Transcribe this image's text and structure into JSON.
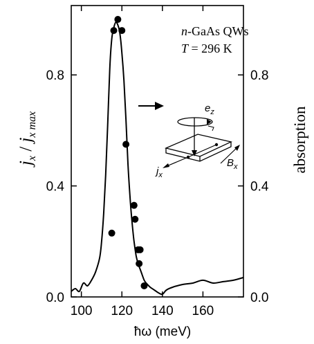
{
  "chart_data": {
    "type": "line",
    "title": "",
    "annotations": {
      "sample": "n-GaAs QWs",
      "sample_italic_part": "n",
      "sample_rest": "-GaAs QWs",
      "temperature": "T = 296 K",
      "temperature_italic_part": "T",
      "temperature_rest": " = 296 K",
      "inset_labels": {
        "ez": "e",
        "ez_sub": "z",
        "jx": "j",
        "jx_sub": "x",
        "bx": "B",
        "bx_sub": "x"
      }
    },
    "xlabel": "ħω (meV)",
    "ylabel_left": "j_x / j_x max",
    "ylabel_left_parts": {
      "j1": "j",
      "s1": "x",
      "slash": " / ",
      "j2": "j",
      "s2": "x max"
    },
    "ylabel_right": "absorption",
    "xlim": [
      95,
      180
    ],
    "ylim": [
      0,
      1.05
    ],
    "x_ticks": [
      100,
      120,
      140,
      160
    ],
    "x_tick_labels": [
      "100",
      "120",
      "140",
      "160"
    ],
    "y_ticks": [
      0.0,
      0.4,
      0.8
    ],
    "y_tick_labels_left": [
      "0.0",
      "0.4",
      "0.8"
    ],
    "y_tick_labels_right": [
      "0.0",
      "0.4",
      "0.8"
    ],
    "series": [
      {
        "kind": "line",
        "axis": "right",
        "x": [
          95,
          97,
          99,
          101,
          103,
          105,
          107,
          109,
          110,
          111,
          112,
          113,
          114,
          115,
          116,
          117,
          118,
          119,
          120,
          121,
          122,
          123,
          124,
          125,
          126,
          127,
          128,
          129,
          130,
          131,
          132,
          134,
          136,
          138,
          140,
          142,
          145,
          150,
          155,
          160,
          165,
          170,
          175,
          180
        ],
        "values": [
          0.02,
          0.03,
          0.02,
          0.05,
          0.04,
          0.06,
          0.09,
          0.14,
          0.2,
          0.3,
          0.44,
          0.62,
          0.82,
          0.93,
          0.97,
          0.99,
          0.98,
          0.95,
          0.88,
          0.78,
          0.64,
          0.48,
          0.36,
          0.27,
          0.2,
          0.15,
          0.12,
          0.1,
          0.08,
          0.06,
          0.05,
          0.035,
          0.025,
          0.015,
          0.01,
          0.025,
          0.035,
          0.045,
          0.05,
          0.06,
          0.05,
          0.055,
          0.06,
          0.07
        ]
      },
      {
        "kind": "scatter",
        "axis": "left",
        "x": [
          115,
          116,
          118,
          120,
          122,
          126,
          126.5,
          128,
          129,
          128.5,
          131
        ],
        "values": [
          0.23,
          0.96,
          1.0,
          0.96,
          0.55,
          0.33,
          0.28,
          0.17,
          0.17,
          0.12,
          0.04
        ]
      }
    ],
    "grid": false
  }
}
